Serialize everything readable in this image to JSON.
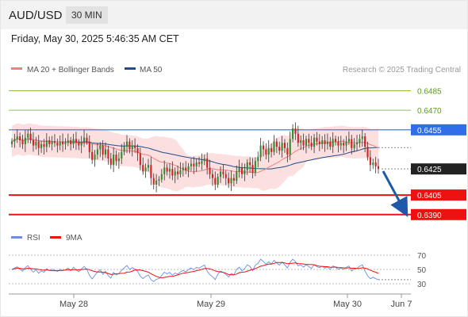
{
  "header": {
    "symbol": "AUD/USD",
    "timeframe": "30 MIN",
    "datetime": "Friday, May 30, 2025 5:46:35 AM CET"
  },
  "legend": {
    "ma20_label": "MA 20 + Bollinger Bands",
    "ma50_label": "MA 50",
    "credit": "Research © 2025 Trading Central",
    "rsi_label": "RSI",
    "rsi_ma_label": "9MA"
  },
  "colors": {
    "bull": "#2e8b2e",
    "bear": "#d42020",
    "ma20": "#f08080",
    "bands": "#fcd9d9",
    "ma50": "#1f4e8c",
    "resistance_green": "#8cc63f",
    "pivot_blue": "#2f6ee8",
    "support_red": "#ee1111",
    "rsi": "#6a8fe0",
    "rsi_ma": "#ee1111",
    "arrow": "#1f5aa8"
  },
  "chart_data": [
    {
      "type": "candlestick",
      "ylim": [
        0.6385,
        0.6495
      ],
      "x_ticks": [
        "May 28",
        "May 29",
        "May 30",
        "Jun 7"
      ],
      "last_price": 0.6425,
      "levels": [
        {
          "value": 0.6485,
          "label": "0.6485",
          "kind": "resistance"
        },
        {
          "value": 0.647,
          "label": "0.6470",
          "kind": "resistance"
        },
        {
          "value": 0.6455,
          "label": "0.6455",
          "kind": "pivot"
        },
        {
          "value": 0.6405,
          "label": "0.6405",
          "kind": "support"
        },
        {
          "value": 0.639,
          "label": "0.6390",
          "kind": "support"
        }
      ],
      "close": [
        0.6446,
        0.6448,
        0.645,
        0.6447,
        0.6444,
        0.6449,
        0.6452,
        0.6447,
        0.6443,
        0.6446,
        0.6441,
        0.6444,
        0.6442,
        0.6447,
        0.6444,
        0.6446,
        0.6445,
        0.6443,
        0.6446,
        0.6444,
        0.6445,
        0.6447,
        0.6444,
        0.6448,
        0.6445,
        0.6443,
        0.6446,
        0.6449,
        0.6446,
        0.6438,
        0.6432,
        0.6436,
        0.644,
        0.6443,
        0.6436,
        0.644,
        0.6433,
        0.6428,
        0.6436,
        0.6431,
        0.6433,
        0.6438,
        0.6442,
        0.6446,
        0.644,
        0.6443,
        0.6441,
        0.6437,
        0.6428,
        0.6423,
        0.6426,
        0.6428,
        0.6418,
        0.6413,
        0.6416,
        0.6417,
        0.6421,
        0.6426,
        0.6423,
        0.6425,
        0.642,
        0.6423,
        0.6421,
        0.6424,
        0.6426,
        0.6424,
        0.6427,
        0.6429,
        0.6427,
        0.643,
        0.6429,
        0.6431,
        0.6433,
        0.6426,
        0.6421,
        0.6418,
        0.6413,
        0.6419,
        0.6423,
        0.6421,
        0.6418,
        0.6414,
        0.6418,
        0.6416,
        0.6423,
        0.6426,
        0.6421,
        0.6424,
        0.643,
        0.6428,
        0.6422,
        0.6431,
        0.6434,
        0.6443,
        0.644,
        0.6436,
        0.6441,
        0.6438,
        0.6446,
        0.6442,
        0.6439,
        0.6445,
        0.6441,
        0.6436,
        0.6448,
        0.6456,
        0.6452,
        0.6445,
        0.6447,
        0.6443,
        0.6448,
        0.6445,
        0.6442,
        0.6449,
        0.6446,
        0.6444,
        0.6447,
        0.6444,
        0.6446,
        0.6442,
        0.6448,
        0.6446,
        0.6443,
        0.6445,
        0.6443,
        0.6446,
        0.6448,
        0.6441,
        0.6444,
        0.6445,
        0.6448,
        0.645,
        0.6442,
        0.6434,
        0.6428,
        0.643,
        0.6427,
        0.6425
      ],
      "rsi": {
        "ylim": [
          20,
          80
        ],
        "levels": [
          {
            "value": 70,
            "label": "70"
          },
          {
            "value": 50,
            "label": "50"
          },
          {
            "value": 30,
            "label": "30"
          }
        ]
      }
    }
  ]
}
